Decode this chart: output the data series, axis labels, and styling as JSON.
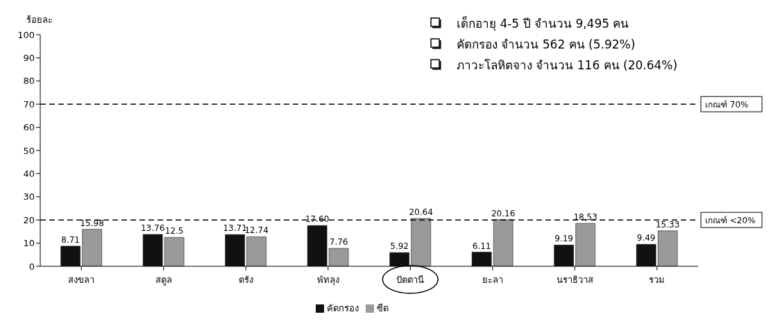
{
  "chart_data": {
    "type": "bar",
    "ylabel": "ร้อยละ",
    "categories": [
      "สงขลา",
      "สตูล",
      "ตรัง",
      "พัทลุง",
      "ปัตตานี",
      "ยะลา",
      "นราธิวาส",
      "รวม"
    ],
    "series": [
      {
        "name": "คัดกรอง",
        "color": "#111111",
        "values": [
          8.71,
          13.76,
          13.71,
          17.6,
          5.92,
          6.11,
          9.19,
          9.49
        ],
        "value_labels": [
          "8.71",
          "13.76",
          "13.71",
          "17.60",
          "5.92",
          "6.11",
          "9.19",
          "9.49"
        ]
      },
      {
        "name": "ซีด",
        "color": "#9a9a9a",
        "values": [
          15.98,
          12.5,
          12.74,
          7.76,
          20.64,
          20.16,
          18.53,
          15.33
        ],
        "value_labels": [
          "15.98",
          "12.5",
          "12.74",
          "7.76",
          "20.64",
          "20.16",
          "18.53",
          "15.33"
        ]
      }
    ],
    "ylim": [
      0,
      100
    ],
    "yticks": [
      0,
      10,
      20,
      30,
      40,
      50,
      60,
      70,
      80,
      90,
      100
    ],
    "legend": "bottom",
    "ref_lines": [
      {
        "axis": "y",
        "value": 70,
        "label": "เกณฑ์  70%",
        "line_style": "dashed",
        "color": "#000000"
      },
      {
        "axis": "y",
        "value": 20,
        "label": "เกณฑ์ <20%",
        "line_style": "dashed",
        "color": "#000000"
      }
    ],
    "annotations": [
      "เด็กอายุ 4-5 ปี จำนวน 9,495 คน",
      "คัดกรอง จำนวน 562 คน (5.92%)",
      "ภาวะโลหิตจาง จำนวน 116 คน (20.64%)"
    ]
  }
}
